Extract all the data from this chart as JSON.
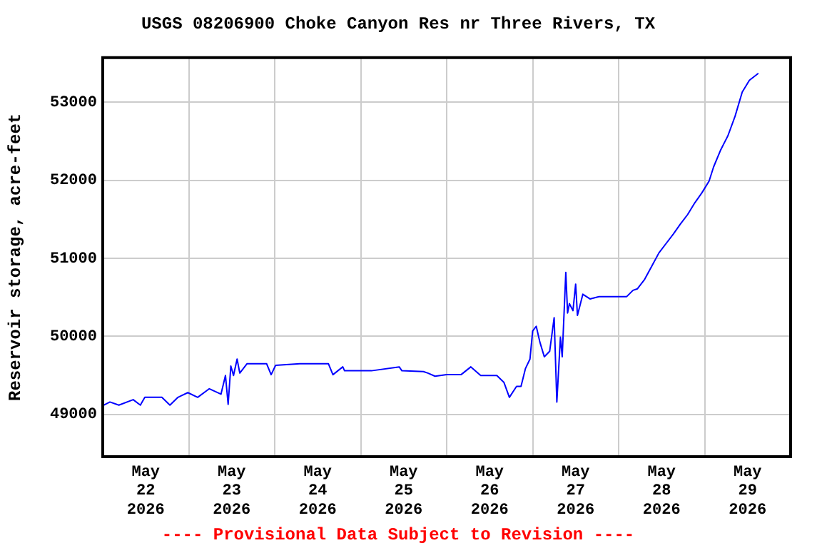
{
  "chart_data": {
    "type": "line",
    "title": "USGS 08206900 Choke Canyon Res nr Three Rivers, TX",
    "ylabel": "Reservoir storage, acre-feet",
    "x": [
      "2026-05-22T00:15",
      "2026-05-22T02:00",
      "2026-05-22T04:30",
      "2026-05-22T08:30",
      "2026-05-22T10:30",
      "2026-05-22T11:45",
      "2026-05-22T16:30",
      "2026-05-22T18:45",
      "2026-05-22T21:00",
      "2026-05-22T23:45",
      "2026-05-23T02:30",
      "2026-05-23T05:45",
      "2026-05-23T09:00",
      "2026-05-23T10:15",
      "2026-05-23T11:00",
      "2026-05-23T11:45",
      "2026-05-23T12:30",
      "2026-05-23T13:30",
      "2026-05-23T14:15",
      "2026-05-23T16:15",
      "2026-05-23T21:45",
      "2026-05-23T23:00",
      "2026-05-24T00:15",
      "2026-05-24T07:00",
      "2026-05-24T15:00",
      "2026-05-24T16:15",
      "2026-05-24T19:00",
      "2026-05-24T19:30",
      "2026-05-25T03:00",
      "2026-05-25T10:45",
      "2026-05-25T11:30",
      "2026-05-25T17:30",
      "2026-05-25T18:45",
      "2026-05-25T20:45",
      "2026-05-26T00:00",
      "2026-05-26T04:00",
      "2026-05-26T06:45",
      "2026-05-26T09:30",
      "2026-05-26T14:00",
      "2026-05-26T16:00",
      "2026-05-26T17:30",
      "2026-05-26T19:30",
      "2026-05-26T20:45",
      "2026-05-26T22:00",
      "2026-05-26T23:15",
      "2026-05-27T00:00",
      "2026-05-27T01:00",
      "2026-05-27T02:00",
      "2026-05-27T03:15",
      "2026-05-27T04:45",
      "2026-05-27T06:00",
      "2026-05-27T06:45",
      "2026-05-27T07:45",
      "2026-05-27T08:15",
      "2026-05-27T09:15",
      "2026-05-27T09:45",
      "2026-05-27T10:15",
      "2026-05-27T11:15",
      "2026-05-27T12:00",
      "2026-05-27T12:30",
      "2026-05-27T14:00",
      "2026-05-27T16:00",
      "2026-05-27T18:30",
      "2026-05-28T02:15",
      "2026-05-28T04:00",
      "2026-05-28T05:15",
      "2026-05-28T07:15",
      "2026-05-28T09:15",
      "2026-05-28T11:15",
      "2026-05-28T13:15",
      "2026-05-28T15:15",
      "2026-05-28T17:15",
      "2026-05-28T19:15",
      "2026-05-28T21:15",
      "2026-05-28T23:15",
      "2026-05-29T01:15",
      "2026-05-29T02:30",
      "2026-05-29T04:30",
      "2026-05-29T06:30",
      "2026-05-29T08:30",
      "2026-05-29T10:30",
      "2026-05-29T12:30",
      "2026-05-29T15:00"
    ],
    "series": [
      {
        "color": "#0000ff",
        "values": [
          49120,
          49160,
          49120,
          49190,
          49120,
          49220,
          49220,
          49120,
          49220,
          49280,
          49220,
          49330,
          49260,
          49500,
          49130,
          49620,
          49500,
          49710,
          49530,
          49650,
          49650,
          49510,
          49630,
          49650,
          49650,
          49510,
          49610,
          49560,
          49560,
          49610,
          49560,
          49550,
          49530,
          49490,
          49510,
          49510,
          49610,
          49500,
          49500,
          49410,
          49220,
          49360,
          49360,
          49590,
          49710,
          50070,
          50130,
          49930,
          49740,
          49810,
          50240,
          49160,
          49990,
          49740,
          50820,
          50300,
          50420,
          50330,
          50670,
          50270,
          50540,
          50480,
          50510,
          50510,
          50590,
          50610,
          50730,
          50900,
          51070,
          51190,
          51310,
          51440,
          51560,
          51710,
          51840,
          51990,
          52170,
          52390,
          52570,
          52820,
          53130,
          53280,
          53370
        ]
      }
    ],
    "xlim": [
      "2026-05-22T00:00",
      "2026-05-30T00:00"
    ],
    "xticks": [
      {
        "value": "2026-05-22T12:00",
        "label": "May 22 2026"
      },
      {
        "value": "2026-05-23T00:00",
        "label": null
      },
      {
        "value": "2026-05-23T12:00",
        "label": "May 23 2026"
      },
      {
        "value": "2026-05-24T00:00",
        "label": null
      },
      {
        "value": "2026-05-24T12:00",
        "label": "May 24 2026"
      },
      {
        "value": "2026-05-25T00:00",
        "label": null
      },
      {
        "value": "2026-05-25T12:00",
        "label": "May 25 2026"
      },
      {
        "value": "2026-05-26T00:00",
        "label": null
      },
      {
        "value": "2026-05-26T12:00",
        "label": "May 26 2026"
      },
      {
        "value": "2026-05-27T00:00",
        "label": null
      },
      {
        "value": "2026-05-27T12:00",
        "label": "May 27 2026"
      },
      {
        "value": "2026-05-28T00:00",
        "label": null
      },
      {
        "value": "2026-05-28T12:00",
        "label": "May 28 2026"
      },
      {
        "value": "2026-05-29T00:00",
        "label": null
      },
      {
        "value": "2026-05-29T12:00",
        "label": "May 29 2026"
      }
    ],
    "ylim": [
      48460,
      53570
    ],
    "yticks": [
      49000,
      50000,
      51000,
      52000,
      53000
    ],
    "grid": true,
    "marker": "none",
    "line_style": "solid",
    "legend": false,
    "annotations": [
      "---- Provisional Data Subject to Revision ----"
    ]
  }
}
